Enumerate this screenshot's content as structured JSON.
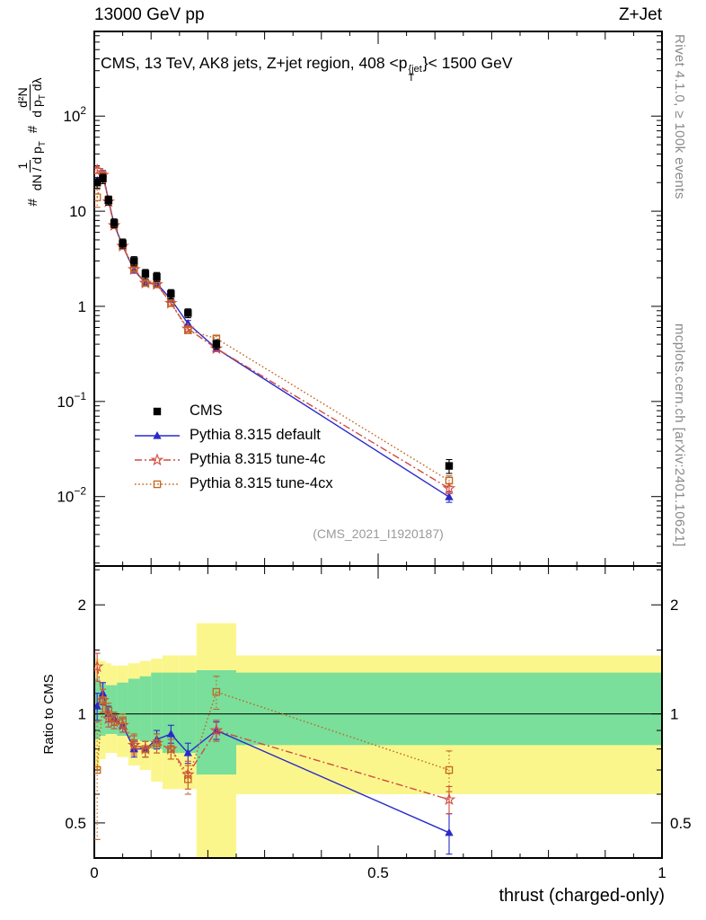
{
  "header": {
    "left_label": "13000 GeV pp",
    "right_label": "Z+Jet"
  },
  "main_panel": {
    "title_pre": "CMS, 13 TeV, AK8 jets, Z+jet region, 408 <p",
    "title_sup": "{jet",
    "title_sub": "T",
    "title_post": "}< 1500 GeV",
    "ylabel": {
      "hash1": "#",
      "f1num": "1",
      "f1den_pre": "dN / d p",
      "f1den_sub": "T",
      "hash2": "#",
      "f2num": "d²N",
      "f2den_pre": "d p",
      "f2den_sub": "T",
      "f2den_post": " dλ"
    },
    "watermark": "(CMS_2021_I1920187)"
  },
  "ratio_panel": {
    "ylabel": "Ratio to CMS"
  },
  "x_axis": {
    "title": "thrust (charged-only)"
  },
  "side_notes": {
    "top_right": "Rivet 4.1.0, ≥ 100k events",
    "bottom_right": "mcplots.cern.ch [arXiv:2401.10621]"
  },
  "legend": [
    {
      "label": "CMS",
      "marker": "square-filled",
      "line": "none",
      "color": "#000000"
    },
    {
      "label": "Pythia 8.315 default",
      "marker": "triangle-filled",
      "line": "solid",
      "color": "#2a2ac8"
    },
    {
      "label": "Pythia 8.315 tune-4c",
      "marker": "star-open",
      "line": "dashdot",
      "color": "#d14b41"
    },
    {
      "label": "Pythia 8.315 tune-4cx",
      "marker": "square-open",
      "line": "dotted",
      "color": "#c2661f"
    }
  ],
  "colors": {
    "band_outer": "#fbf68c",
    "band_inner": "#79df9b",
    "frame": "#000000",
    "reference_line": "#000000"
  },
  "chart_data": [
    {
      "type": "line",
      "panel": "main",
      "title": "CMS, 13 TeV, AK8 jets, Z+jet region, 408 <pT{jet}< 1500 GeV",
      "xlabel": "thrust (charged-only)",
      "ylabel": "# 1/(dN/dpT) # d2N/(dpT dlambda)",
      "y_scale": "log",
      "xlim": [
        0,
        1
      ],
      "ylog_range": [
        -2.73,
        2.89
      ],
      "ytick_exponents": [
        2,
        1,
        0,
        -1,
        -2
      ],
      "x": [
        0.005,
        0.015,
        0.025,
        0.035,
        0.05,
        0.07,
        0.09,
        0.11,
        0.135,
        0.165,
        0.215,
        0.625
      ],
      "series": [
        {
          "name": "CMS",
          "values": [
            20,
            22,
            13,
            7.5,
            4.6,
            3.0,
            2.2,
            2.05,
            1.35,
            0.85,
            0.4,
            0.021
          ],
          "yerr": [
            2.5,
            2.5,
            1.4,
            0.8,
            0.5,
            0.33,
            0.24,
            0.22,
            0.15,
            0.09,
            0.045,
            0.0035
          ]
        },
        {
          "name": "Pythia 8.315 default",
          "values": [
            21,
            25,
            13.0,
            7.3,
            4.3,
            2.4,
            1.76,
            1.74,
            1.19,
            0.66,
            0.36,
            0.0099
          ],
          "yerr": [
            1.5,
            1.8,
            0.9,
            0.5,
            0.3,
            0.17,
            0.12,
            0.12,
            0.08,
            0.05,
            0.025,
            0.0012
          ]
        },
        {
          "name": "Pythia 8.315 tune-4c",
          "values": [
            27,
            24,
            12.6,
            7.1,
            4.3,
            2.45,
            1.76,
            1.7,
            1.08,
            0.58,
            0.36,
            0.0122
          ],
          "yerr": [
            2.0,
            1.7,
            0.9,
            0.5,
            0.3,
            0.17,
            0.12,
            0.12,
            0.08,
            0.04,
            0.025,
            0.0015
          ]
        },
        {
          "name": "Pythia 8.315 tune-4cx",
          "values": [
            14,
            24,
            13.3,
            7.3,
            4.4,
            2.5,
            1.76,
            1.7,
            1.08,
            0.56,
            0.46,
            0.0147
          ],
          "yerr": [
            3.0,
            1.7,
            0.9,
            0.5,
            0.3,
            0.17,
            0.12,
            0.12,
            0.08,
            0.04,
            0.03,
            0.0018
          ]
        }
      ]
    },
    {
      "type": "ratio",
      "panel": "ratio",
      "ylabel": "Ratio to CMS",
      "y_scale": "log",
      "ylim": [
        0.4,
        2.56
      ],
      "yticks": [
        {
          "v": 2,
          "t": "2"
        },
        {
          "v": 1,
          "t": "1"
        },
        {
          "v": 0.5,
          "t": "0.5"
        }
      ],
      "ytick_minor": [
        0.4,
        0.6,
        0.7,
        0.8,
        0.9,
        1.5,
        2.5
      ],
      "xticks": [
        {
          "v": 0,
          "t": "0"
        },
        {
          "v": 0.5,
          "t": "0.5"
        },
        {
          "v": 1,
          "t": "1"
        }
      ],
      "x": [
        0.005,
        0.015,
        0.025,
        0.035,
        0.05,
        0.07,
        0.09,
        0.11,
        0.135,
        0.165,
        0.215,
        0.625
      ],
      "series": [
        {
          "name": "Pythia 8.315 default",
          "values": [
            1.05,
            1.14,
            1.0,
            0.97,
            0.93,
            0.8,
            0.8,
            0.85,
            0.88,
            0.78,
            0.9,
            0.47
          ],
          "yerr": [
            0.09,
            0.08,
            0.05,
            0.04,
            0.04,
            0.04,
            0.04,
            0.05,
            0.05,
            0.05,
            0.05,
            0.06
          ]
        },
        {
          "name": "Pythia 8.315 tune-4c",
          "values": [
            1.35,
            1.09,
            0.97,
            0.95,
            0.93,
            0.82,
            0.8,
            0.83,
            0.8,
            0.68,
            0.9,
            0.58
          ],
          "yerr": [
            0.12,
            0.08,
            0.05,
            0.04,
            0.04,
            0.05,
            0.04,
            0.05,
            0.05,
            0.06,
            0.06,
            0.05
          ]
        },
        {
          "name": "Pythia 8.315 tune-4cx",
          "values": [
            0.7,
            1.09,
            1.02,
            0.97,
            0.96,
            0.83,
            0.8,
            0.83,
            0.8,
            0.66,
            1.15,
            0.7
          ],
          "yerr": [
            0.25,
            0.08,
            0.05,
            0.04,
            0.04,
            0.05,
            0.04,
            0.05,
            0.05,
            0.06,
            0.12,
            0.09
          ]
        }
      ],
      "bands": {
        "bin_edges": [
          0,
          0.01,
          0.02,
          0.03,
          0.04,
          0.06,
          0.08,
          0.1,
          0.12,
          0.15,
          0.18,
          0.25,
          1.0
        ],
        "yellow": [
          [
            0.7,
            1.42
          ],
          [
            0.75,
            1.4
          ],
          [
            0.78,
            1.38
          ],
          [
            0.78,
            1.36
          ],
          [
            0.76,
            1.36
          ],
          [
            0.72,
            1.38
          ],
          [
            0.7,
            1.4
          ],
          [
            0.65,
            1.42
          ],
          [
            0.62,
            1.45
          ],
          [
            0.62,
            1.45
          ],
          [
            0.35,
            1.78
          ],
          [
            0.6,
            1.45
          ]
        ],
        "green": [
          [
            0.85,
            1.25
          ],
          [
            0.87,
            1.22
          ],
          [
            0.88,
            1.2
          ],
          [
            0.88,
            1.2
          ],
          [
            0.87,
            1.22
          ],
          [
            0.85,
            1.25
          ],
          [
            0.84,
            1.27
          ],
          [
            0.8,
            1.3
          ],
          [
            0.78,
            1.3
          ],
          [
            0.78,
            1.3
          ],
          [
            0.68,
            1.32
          ],
          [
            0.82,
            1.3
          ]
        ]
      }
    }
  ]
}
